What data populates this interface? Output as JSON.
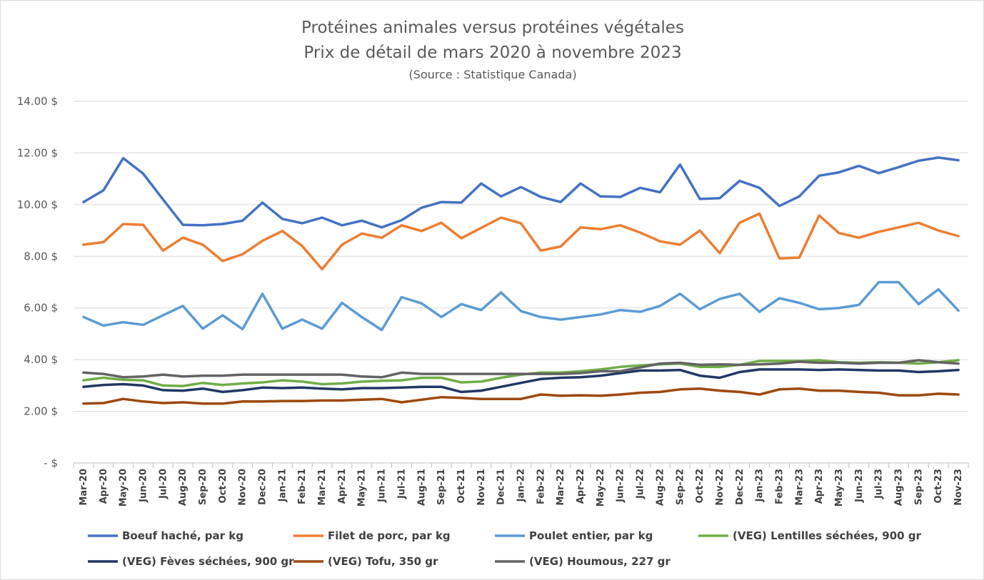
{
  "chart_data": {
    "type": "line",
    "title": "Protéines animales versus protéines végétales",
    "subtitle": "Prix de détail de mars 2020 à novembre 2023",
    "source": "(Source : Statistique Canada)",
    "ylim": [
      0,
      14
    ],
    "y_ticks": [
      {
        "value": 0,
        "label": "-  $"
      },
      {
        "value": 2,
        "label": "2.00 $"
      },
      {
        "value": 4,
        "label": "4.00 $"
      },
      {
        "value": 6,
        "label": "6.00 $"
      },
      {
        "value": 8,
        "label": "8.00 $"
      },
      {
        "value": 10,
        "label": "10.00 $"
      },
      {
        "value": 12,
        "label": "12.00 $"
      },
      {
        "value": 14,
        "label": "14.00 $"
      }
    ],
    "grid": true,
    "legend_position": "bottom",
    "categories": [
      "Mar-20",
      "Apr-20",
      "May-20",
      "Jun-20",
      "Jul-20",
      "Aug-20",
      "Sep-20",
      "Oct-20",
      "Nov-20",
      "Dec-20",
      "Jan-21",
      "Feb-21",
      "Mar-21",
      "Apr-21",
      "May-21",
      "Jun-21",
      "Jul-21",
      "Aug-21",
      "Sep-21",
      "Oct-21",
      "Nov-21",
      "Dec-21",
      "Jan-22",
      "Feb-22",
      "Mar-22",
      "Apr-22",
      "May-22",
      "Jun-22",
      "Jul-22",
      "Aug-22",
      "Sep-22",
      "Oct-22",
      "Nov-22",
      "Dec-22",
      "Jan-23",
      "Feb-23",
      "Mar-23",
      "Apr-23",
      "May-23",
      "Jun-23",
      "Jul-23",
      "Aug-23",
      "Sep-23",
      "Oct-23",
      "Nov-23"
    ],
    "series": [
      {
        "name": "Boeuf haché, par kg",
        "color": "#4472c4",
        "values": [
          10.1,
          10.55,
          11.8,
          11.2,
          10.2,
          9.22,
          9.2,
          9.25,
          9.38,
          10.08,
          9.45,
          9.28,
          9.5,
          9.2,
          9.38,
          9.12,
          9.4,
          9.88,
          10.1,
          10.08,
          10.82,
          10.32,
          10.68,
          10.3,
          10.1,
          10.82,
          10.32,
          10.3,
          10.65,
          10.48,
          11.55,
          10.22,
          10.25,
          10.92,
          10.65,
          9.95,
          10.32,
          11.12,
          11.25,
          11.5,
          11.22,
          11.45,
          11.7,
          11.82,
          11.72
        ]
      },
      {
        "name": "Filet de porc, par kg",
        "color": "#ed7d31",
        "values": [
          8.45,
          8.55,
          9.25,
          9.22,
          8.22,
          8.72,
          8.45,
          7.82,
          8.08,
          8.6,
          8.98,
          8.4,
          7.5,
          8.45,
          8.88,
          8.72,
          9.2,
          8.98,
          9.3,
          8.7,
          9.1,
          9.5,
          9.28,
          8.22,
          8.38,
          9.12,
          9.05,
          9.2,
          8.92,
          8.58,
          8.45,
          9.0,
          8.12,
          9.3,
          9.65,
          7.92,
          7.95,
          9.58,
          8.9,
          8.72,
          8.95,
          9.12,
          9.3,
          9.0,
          8.78
        ]
      },
      {
        "name": "Poulet entier, par kg",
        "color": "#5b9bd5",
        "values": [
          5.65,
          5.32,
          5.45,
          5.35,
          5.72,
          6.08,
          5.2,
          5.72,
          5.18,
          6.55,
          5.2,
          5.55,
          5.2,
          6.2,
          5.65,
          5.15,
          6.42,
          6.18,
          5.65,
          6.15,
          5.92,
          6.6,
          5.88,
          5.65,
          5.55,
          5.65,
          5.75,
          5.92,
          5.85,
          6.08,
          6.55,
          5.95,
          6.35,
          6.55,
          5.85,
          6.38,
          6.2,
          5.95,
          6.0,
          6.12,
          7.0,
          7.0,
          6.15,
          6.72,
          5.9
        ]
      },
      {
        "name": "(VEG) Lentilles séchées, 900 gr",
        "color": "#70ad47",
        "values": [
          3.2,
          3.3,
          3.22,
          3.2,
          3.0,
          2.98,
          3.1,
          3.02,
          3.08,
          3.12,
          3.2,
          3.15,
          3.05,
          3.08,
          3.15,
          3.18,
          3.2,
          3.3,
          3.3,
          3.12,
          3.15,
          3.3,
          3.42,
          3.5,
          3.5,
          3.55,
          3.62,
          3.72,
          3.78,
          3.82,
          3.85,
          3.72,
          3.72,
          3.8,
          3.95,
          3.95,
          3.95,
          3.98,
          3.9,
          3.88,
          3.9,
          3.88,
          3.85,
          3.9,
          3.98
        ]
      },
      {
        "name": "(VEG) Fèves séchées, 900 gr",
        "color": "#203864",
        "values": [
          2.95,
          3.02,
          3.05,
          3.0,
          2.82,
          2.8,
          2.88,
          2.75,
          2.82,
          2.92,
          2.9,
          2.92,
          2.88,
          2.85,
          2.9,
          2.9,
          2.92,
          2.95,
          2.95,
          2.75,
          2.8,
          2.95,
          3.1,
          3.25,
          3.3,
          3.32,
          3.38,
          3.48,
          3.58,
          3.58,
          3.6,
          3.38,
          3.3,
          3.52,
          3.62,
          3.62,
          3.62,
          3.6,
          3.62,
          3.6,
          3.58,
          3.58,
          3.52,
          3.55,
          3.6
        ]
      },
      {
        "name": "(VEG) Tofu, 350 gr",
        "color": "#9e480e",
        "values": [
          2.3,
          2.32,
          2.48,
          2.38,
          2.32,
          2.35,
          2.3,
          2.3,
          2.38,
          2.38,
          2.4,
          2.4,
          2.42,
          2.42,
          2.45,
          2.48,
          2.35,
          2.45,
          2.55,
          2.52,
          2.48,
          2.48,
          2.48,
          2.65,
          2.6,
          2.62,
          2.6,
          2.65,
          2.72,
          2.75,
          2.85,
          2.88,
          2.8,
          2.75,
          2.65,
          2.85,
          2.88,
          2.8,
          2.8,
          2.75,
          2.72,
          2.62,
          2.62,
          2.68,
          2.65
        ]
      },
      {
        "name": "(VEG) Houmous, 227 gr",
        "color": "#636363",
        "values": [
          3.5,
          3.45,
          3.32,
          3.35,
          3.42,
          3.35,
          3.38,
          3.38,
          3.42,
          3.42,
          3.42,
          3.42,
          3.42,
          3.42,
          3.35,
          3.32,
          3.5,
          3.45,
          3.45,
          3.45,
          3.45,
          3.45,
          3.45,
          3.45,
          3.45,
          3.48,
          3.55,
          3.55,
          3.7,
          3.85,
          3.88,
          3.8,
          3.82,
          3.8,
          3.82,
          3.85,
          3.92,
          3.88,
          3.88,
          3.85,
          3.88,
          3.88,
          3.98,
          3.9,
          3.85
        ]
      }
    ]
  }
}
